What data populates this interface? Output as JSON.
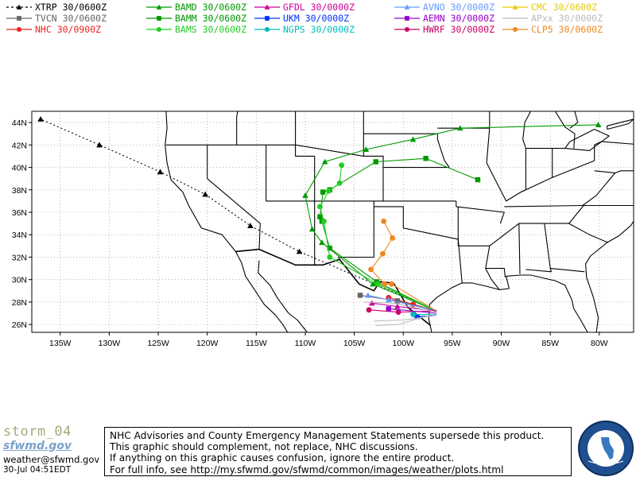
{
  "legend": [
    {
      "id": "xtrp",
      "label": "XTRP  30/0600Z",
      "color": "#000000",
      "marker": "triangle",
      "dash": true
    },
    {
      "id": "bamd",
      "label": "BAMD 30/0600Z",
      "color": "#009900",
      "marker": "triangle",
      "dash": false
    },
    {
      "id": "gfdl",
      "label": "GFDL  30/0000Z",
      "color": "#cc0099",
      "marker": "triangle",
      "dash": false
    },
    {
      "id": "avno",
      "label": "AVNO 30/0000Z",
      "color": "#6699ff",
      "marker": "triangle",
      "dash": false
    },
    {
      "id": "cmc",
      "label": "CMC  30/0600Z",
      "color": "#e6cc00",
      "marker": "triangle",
      "dash": false
    },
    {
      "id": "tvcn",
      "label": "TVCN 30/0600Z",
      "color": "#666666",
      "marker": "square",
      "dash": false
    },
    {
      "id": "bamm",
      "label": "BAMM 30/0600Z",
      "color": "#009900",
      "marker": "square",
      "dash": false
    },
    {
      "id": "ukm",
      "label": "UKM   30/0000Z",
      "color": "#0033ff",
      "marker": "square",
      "dash": false
    },
    {
      "id": "aemn",
      "label": "AEMN 30/0000Z",
      "color": "#9900cc",
      "marker": "square",
      "dash": false
    },
    {
      "id": "apxx",
      "label": "APxx 30/0000Z",
      "color": "#bbbbbb",
      "marker": "none",
      "dash": false
    },
    {
      "id": "nhc",
      "label": "NHC   30/0900Z",
      "color": "#ee2222",
      "marker": "circle",
      "dash": false
    },
    {
      "id": "bams",
      "label": "BAMS 30/0600Z",
      "color": "#22cc22",
      "marker": "circle",
      "dash": false
    },
    {
      "id": "ngps",
      "label": "NGPS 30/0000Z",
      "color": "#00bbbb",
      "marker": "circle",
      "dash": false
    },
    {
      "id": "hwrf",
      "label": "HWRF 30/0000Z",
      "color": "#cc0066",
      "marker": "circle",
      "dash": false
    },
    {
      "id": "clp5",
      "label": "CLP5 30/0600Z",
      "color": "#ee8822",
      "marker": "circle",
      "dash": false
    }
  ],
  "map": {
    "lat_labels": [
      "44N",
      "42N",
      "40N",
      "38N",
      "36N",
      "34N",
      "32N",
      "30N",
      "28N",
      "26N"
    ],
    "lat_values": [
      44,
      42,
      40,
      38,
      36,
      34,
      32,
      30,
      28,
      26
    ],
    "lon_labels": [
      "135W",
      "130W",
      "125W",
      "120W",
      "115W",
      "110W",
      "105W",
      "100W",
      "95W",
      "90W",
      "85W",
      "80W"
    ],
    "lon_values": [
      -135,
      -130,
      -125,
      -120,
      -115,
      -110,
      -105,
      -100,
      -95,
      -90,
      -85,
      -80
    ],
    "lon_range": [
      -137.9,
      -76.5
    ],
    "lat_range": [
      25.3,
      45.0
    ],
    "grid": true
  },
  "tracks": [
    {
      "model": "xtrp",
      "color": "#000000",
      "marker": "triangle",
      "dash": true,
      "points": [
        [
          -96.6,
          27.2
        ],
        [
          -110.6,
          32.5
        ],
        [
          -115.6,
          34.8
        ],
        [
          -120.2,
          37.6
        ],
        [
          -124.8,
          39.6
        ],
        [
          -131,
          42
        ],
        [
          -137,
          44.3
        ]
      ]
    },
    {
      "model": "bamd",
      "color": "#009900",
      "marker": "triangle",
      "dash": false,
      "points": [
        [
          -96.6,
          27.2
        ],
        [
          -103.1,
          29.6
        ],
        [
          -108.3,
          33.3
        ],
        [
          -109.3,
          34.5
        ],
        [
          -110,
          37.5
        ],
        [
          -108,
          40.5
        ],
        [
          -103.8,
          41.6
        ],
        [
          -99,
          42.5
        ],
        [
          -94.2,
          43.5
        ],
        [
          -80.1,
          43.8
        ]
      ]
    },
    {
      "model": "bamm",
      "color": "#009900",
      "marker": "square",
      "dash": false,
      "points": [
        [
          -96.6,
          27.2
        ],
        [
          -102.7,
          29.8
        ],
        [
          -107.5,
          32.8
        ],
        [
          -108.3,
          35.2
        ],
        [
          -108.5,
          35.6
        ],
        [
          -108.2,
          37.8
        ],
        [
          -107.5,
          38.0
        ],
        [
          -102.8,
          40.5
        ],
        [
          -97.7,
          40.8
        ],
        [
          -92.4,
          38.9
        ]
      ]
    },
    {
      "model": "bams",
      "color": "#22cc22",
      "marker": "circle",
      "dash": false,
      "points": [
        [
          -96.6,
          27.2
        ],
        [
          -102.6,
          29.6
        ],
        [
          -107.5,
          32.0
        ],
        [
          -108.1,
          35.2
        ],
        [
          -108.5,
          36.5
        ],
        [
          -107.6,
          37.9
        ],
        [
          -106.5,
          38.6
        ],
        [
          -106.3,
          40.2
        ]
      ]
    },
    {
      "model": "clp5",
      "color": "#ee8822",
      "marker": "circle",
      "dash": false,
      "points": [
        [
          -96.6,
          27.2
        ],
        [
          -101.2,
          29.6
        ],
        [
          -101.9,
          29.6
        ],
        [
          -103.3,
          30.9
        ],
        [
          -102.1,
          32.3
        ],
        [
          -101.1,
          33.7
        ],
        [
          -102,
          35.2
        ]
      ]
    },
    {
      "model": "nhc",
      "color": "#ee2222",
      "marker": "circle",
      "dash": false,
      "points": [
        [
          -96.6,
          27.2
        ],
        [
          -99,
          27.8
        ],
        [
          -101.5,
          28.4
        ]
      ]
    },
    {
      "model": "tvcn",
      "color": "#666666",
      "marker": "square",
      "dash": false,
      "points": [
        [
          -96.6,
          27.2
        ],
        [
          -100.6,
          28.1
        ],
        [
          -104.4,
          28.6
        ]
      ]
    },
    {
      "model": "avno",
      "color": "#6699ff",
      "marker": "triangle",
      "dash": false,
      "points": [
        [
          -96.6,
          27.2
        ],
        [
          -101.5,
          28.2
        ],
        [
          -103.6,
          28.6
        ]
      ]
    },
    {
      "model": "gfdl",
      "color": "#cc0099",
      "marker": "triangle",
      "dash": false,
      "points": [
        [
          -96.6,
          27.2
        ],
        [
          -100.6,
          27.6
        ],
        [
          -103.2,
          27.9
        ]
      ]
    },
    {
      "model": "hwrf",
      "color": "#cc0066",
      "marker": "circle",
      "dash": false,
      "points": [
        [
          -96.6,
          27.2
        ],
        [
          -100.5,
          27.1
        ],
        [
          -103.5,
          27.3
        ]
      ]
    },
    {
      "model": "ukm",
      "color": "#0033ff",
      "marker": "square",
      "dash": false,
      "points": [
        [
          -96.6,
          26.8
        ],
        [
          -98.6,
          26.7
        ]
      ]
    },
    {
      "model": "ngps",
      "color": "#00bbbb",
      "marker": "circle",
      "dash": false,
      "points": [
        [
          -96.6,
          26.9
        ],
        [
          -99,
          26.9
        ]
      ]
    },
    {
      "model": "aemn",
      "color": "#9900cc",
      "marker": "square",
      "dash": false,
      "points": [
        [
          -96.6,
          27.0
        ],
        [
          -101.5,
          27.4
        ]
      ]
    },
    {
      "model": "apxx",
      "color": "#bbbbbb",
      "marker": "none",
      "dash": false,
      "points": [
        [
          -96.6,
          26.8
        ],
        [
          -100,
          26.4
        ],
        [
          -103,
          26.3
        ]
      ]
    },
    {
      "model": "apxx2",
      "color": "#bbbbbb",
      "marker": "none",
      "dash": false,
      "points": [
        [
          -96.6,
          27.0
        ],
        [
          -100.5,
          26.0
        ],
        [
          -102.8,
          25.9
        ]
      ]
    },
    {
      "model": "apxx3",
      "color": "#bbbbbb",
      "marker": "none",
      "dash": false,
      "points": [
        [
          -96.6,
          27.1
        ],
        [
          -101,
          27.9
        ],
        [
          -104,
          28.0
        ]
      ]
    }
  ],
  "footer": {
    "storm": "storm_04",
    "site": "sfwmd.gov",
    "email": "weather@sfwmd.gov",
    "timestamp": "30-Jul 04:51EDT",
    "disclaimer": [
      "NHC Advisories and County Emergency Management Statements supersede this product.",
      "This graphic should complement, not replace, NHC discussions.",
      "If anything on this graphic causes confusion, ignore the entire product.",
      "For full info, see  http://my.sfwmd.gov/sfwmd/common/images/weather/plots.html"
    ],
    "seal_text": "SOUTH FLORIDA WATER MANAGEMENT DISTRICT"
  }
}
